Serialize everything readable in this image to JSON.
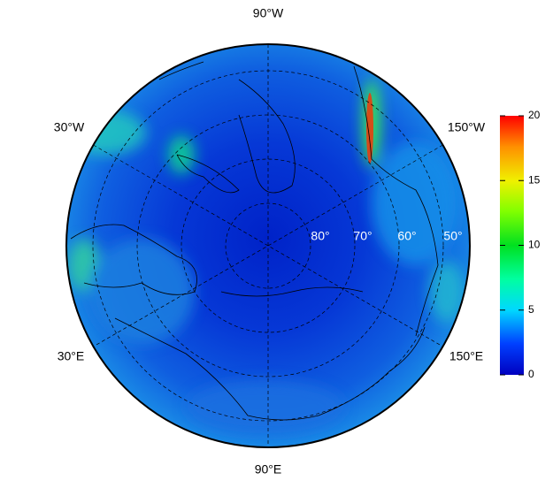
{
  "map": {
    "lon_labels": [
      "90°W",
      "30°W",
      "150°W",
      "30°E",
      "150°E",
      "90°E"
    ],
    "lat_labels": [
      "80°",
      "70°",
      "60°",
      "50°"
    ],
    "colorbar": {
      "lim": [
        0,
        20
      ],
      "ticks": [
        0,
        5,
        10,
        15,
        20
      ]
    }
  }
}
